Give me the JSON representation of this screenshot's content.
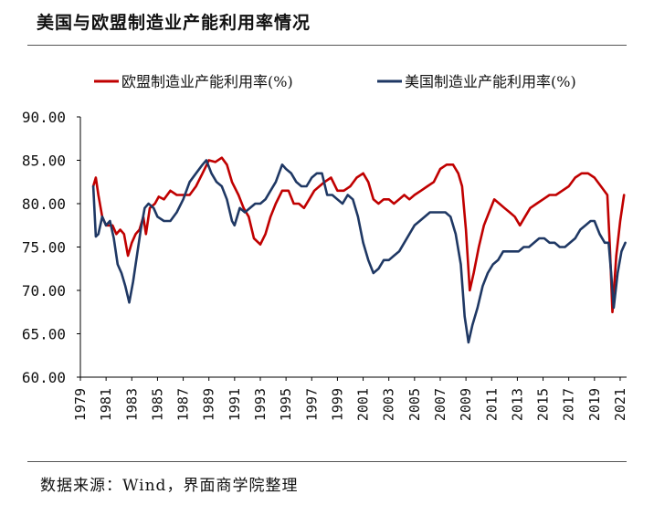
{
  "header": {
    "title": "美国与欧盟制造业产能利用率情况"
  },
  "footer": {
    "source": "数据来源：Wind，界面商学院整理"
  },
  "colors": {
    "eu": "#c00000",
    "us": "#1f3864",
    "axis": "#000000",
    "rule": "#555555"
  },
  "chart_data": {
    "type": "line",
    "title": "美国与欧盟制造业产能利用率情况",
    "xlabel": "",
    "ylabel": "",
    "ylim": [
      60,
      90
    ],
    "xlim": [
      1979,
      2021.5
    ],
    "y_ticks": [
      "60.00",
      "65.00",
      "70.00",
      "75.00",
      "80.00",
      "85.00",
      "90.00"
    ],
    "x_ticks": [
      "1979",
      "1981",
      "1983",
      "1985",
      "1987",
      "1989",
      "1991",
      "1993",
      "1995",
      "1997",
      "1999",
      "2001",
      "2003",
      "2005",
      "2007",
      "2009",
      "2011",
      "2013",
      "2015",
      "2017",
      "2019",
      "2021"
    ],
    "legend_position": "top",
    "series": [
      {
        "name": "欧盟制造业产能利用率(%)",
        "color": "#c00000",
        "points": [
          [
            1980.0,
            82.0
          ],
          [
            1980.2,
            83.0
          ],
          [
            1980.4,
            81.0
          ],
          [
            1980.7,
            78.5
          ],
          [
            1981.0,
            77.5
          ],
          [
            1981.5,
            77.5
          ],
          [
            1981.8,
            76.5
          ],
          [
            1982.1,
            77.0
          ],
          [
            1982.4,
            76.5
          ],
          [
            1982.7,
            74.0
          ],
          [
            1983.0,
            75.5
          ],
          [
            1983.3,
            76.5
          ],
          [
            1983.6,
            77.0
          ],
          [
            1983.9,
            78.5
          ],
          [
            1984.1,
            76.5
          ],
          [
            1984.4,
            79.5
          ],
          [
            1984.8,
            80.0
          ],
          [
            1985.1,
            80.8
          ],
          [
            1985.5,
            80.5
          ],
          [
            1986.0,
            81.5
          ],
          [
            1986.5,
            81.0
          ],
          [
            1987.0,
            81.0
          ],
          [
            1987.5,
            81.0
          ],
          [
            1988.0,
            82.0
          ],
          [
            1988.5,
            83.5
          ],
          [
            1989.0,
            85.0
          ],
          [
            1989.5,
            84.8
          ],
          [
            1990.0,
            85.3
          ],
          [
            1990.4,
            84.5
          ],
          [
            1990.8,
            82.5
          ],
          [
            1991.3,
            81.0
          ],
          [
            1991.7,
            79.5
          ],
          [
            1992.1,
            78.5
          ],
          [
            1992.5,
            76.0
          ],
          [
            1993.0,
            75.3
          ],
          [
            1993.4,
            76.5
          ],
          [
            1993.8,
            78.5
          ],
          [
            1994.2,
            80.0
          ],
          [
            1994.7,
            81.5
          ],
          [
            1995.2,
            81.5
          ],
          [
            1995.6,
            80.0
          ],
          [
            1996.0,
            80.0
          ],
          [
            1996.4,
            79.5
          ],
          [
            1996.8,
            80.5
          ],
          [
            1997.2,
            81.5
          ],
          [
            1997.6,
            82.0
          ],
          [
            1998.0,
            82.5
          ],
          [
            1998.5,
            83.0
          ],
          [
            1999.0,
            81.5
          ],
          [
            1999.5,
            81.5
          ],
          [
            2000.0,
            82.0
          ],
          [
            2000.5,
            83.0
          ],
          [
            2001.0,
            83.5
          ],
          [
            2001.4,
            82.5
          ],
          [
            2001.8,
            80.5
          ],
          [
            2002.2,
            80.0
          ],
          [
            2002.6,
            80.5
          ],
          [
            2003.0,
            80.5
          ],
          [
            2003.4,
            80.0
          ],
          [
            2003.8,
            80.5
          ],
          [
            2004.2,
            81.0
          ],
          [
            2004.6,
            80.5
          ],
          [
            2005.0,
            81.0
          ],
          [
            2005.5,
            81.5
          ],
          [
            2006.0,
            82.0
          ],
          [
            2006.5,
            82.5
          ],
          [
            2007.0,
            84.0
          ],
          [
            2007.5,
            84.5
          ],
          [
            2008.0,
            84.5
          ],
          [
            2008.4,
            83.5
          ],
          [
            2008.7,
            82.0
          ],
          [
            2009.0,
            77.0
          ],
          [
            2009.3,
            70.0
          ],
          [
            2009.6,
            72.0
          ],
          [
            2010.0,
            75.0
          ],
          [
            2010.4,
            77.5
          ],
          [
            2010.8,
            79.0
          ],
          [
            2011.2,
            80.5
          ],
          [
            2011.6,
            80.0
          ],
          [
            2012.0,
            79.5
          ],
          [
            2012.4,
            79.0
          ],
          [
            2012.8,
            78.5
          ],
          [
            2013.2,
            77.5
          ],
          [
            2013.6,
            78.5
          ],
          [
            2014.0,
            79.5
          ],
          [
            2014.5,
            80.0
          ],
          [
            2015.0,
            80.5
          ],
          [
            2015.5,
            81.0
          ],
          [
            2016.0,
            81.0
          ],
          [
            2016.5,
            81.5
          ],
          [
            2017.0,
            82.0
          ],
          [
            2017.5,
            83.0
          ],
          [
            2018.0,
            83.5
          ],
          [
            2018.5,
            83.5
          ],
          [
            2019.0,
            83.0
          ],
          [
            2019.5,
            82.0
          ],
          [
            2020.0,
            81.0
          ],
          [
            2020.2,
            75.0
          ],
          [
            2020.4,
            67.5
          ],
          [
            2020.7,
            74.0
          ],
          [
            2021.0,
            78.0
          ],
          [
            2021.3,
            81.0
          ]
        ]
      },
      {
        "name": "美国制造业产能利用率(%)",
        "color": "#1f3864",
        "points": [
          [
            1980.0,
            82.0
          ],
          [
            1980.2,
            76.2
          ],
          [
            1980.4,
            76.5
          ],
          [
            1980.7,
            78.5
          ],
          [
            1981.0,
            77.5
          ],
          [
            1981.3,
            78.0
          ],
          [
            1981.6,
            76.0
          ],
          [
            1981.9,
            73.0
          ],
          [
            1982.2,
            72.0
          ],
          [
            1982.5,
            70.5
          ],
          [
            1982.8,
            68.6
          ],
          [
            1983.1,
            71.0
          ],
          [
            1983.4,
            74.0
          ],
          [
            1983.7,
            77.0
          ],
          [
            1984.0,
            79.5
          ],
          [
            1984.3,
            80.0
          ],
          [
            1984.7,
            79.5
          ],
          [
            1985.0,
            78.5
          ],
          [
            1985.5,
            78.0
          ],
          [
            1986.0,
            78.0
          ],
          [
            1986.5,
            79.0
          ],
          [
            1987.0,
            80.5
          ],
          [
            1987.5,
            82.5
          ],
          [
            1988.0,
            83.5
          ],
          [
            1988.5,
            84.5
          ],
          [
            1988.8,
            85.0
          ],
          [
            1989.2,
            83.5
          ],
          [
            1989.6,
            82.5
          ],
          [
            1990.0,
            82.0
          ],
          [
            1990.4,
            80.5
          ],
          [
            1990.8,
            78.0
          ],
          [
            1991.0,
            77.5
          ],
          [
            1991.4,
            79.5
          ],
          [
            1991.8,
            79.0
          ],
          [
            1992.2,
            79.5
          ],
          [
            1992.6,
            80.0
          ],
          [
            1993.0,
            80.0
          ],
          [
            1993.4,
            80.5
          ],
          [
            1993.8,
            81.5
          ],
          [
            1994.2,
            82.5
          ],
          [
            1994.7,
            84.5
          ],
          [
            1995.0,
            84.0
          ],
          [
            1995.4,
            83.5
          ],
          [
            1995.8,
            82.5
          ],
          [
            1996.2,
            82.0
          ],
          [
            1996.6,
            82.0
          ],
          [
            1997.0,
            83.0
          ],
          [
            1997.4,
            83.5
          ],
          [
            1997.8,
            83.5
          ],
          [
            1998.2,
            81.0
          ],
          [
            1998.6,
            81.0
          ],
          [
            1999.0,
            80.5
          ],
          [
            1999.4,
            80.0
          ],
          [
            1999.8,
            81.0
          ],
          [
            2000.2,
            80.5
          ],
          [
            2000.6,
            78.5
          ],
          [
            2001.0,
            75.5
          ],
          [
            2001.4,
            73.5
          ],
          [
            2001.8,
            72.0
          ],
          [
            2002.2,
            72.5
          ],
          [
            2002.6,
            73.5
          ],
          [
            2003.0,
            73.5
          ],
          [
            2003.4,
            74.0
          ],
          [
            2003.8,
            74.5
          ],
          [
            2004.2,
            75.5
          ],
          [
            2004.6,
            76.5
          ],
          [
            2005.0,
            77.5
          ],
          [
            2005.4,
            78.0
          ],
          [
            2005.8,
            78.5
          ],
          [
            2006.2,
            79.0
          ],
          [
            2006.6,
            79.0
          ],
          [
            2007.0,
            79.0
          ],
          [
            2007.4,
            79.0
          ],
          [
            2007.8,
            78.5
          ],
          [
            2008.2,
            76.5
          ],
          [
            2008.6,
            73.0
          ],
          [
            2008.9,
            67.0
          ],
          [
            2009.2,
            64.0
          ],
          [
            2009.5,
            66.0
          ],
          [
            2009.9,
            68.0
          ],
          [
            2010.3,
            70.5
          ],
          [
            2010.7,
            72.0
          ],
          [
            2011.1,
            73.0
          ],
          [
            2011.5,
            73.5
          ],
          [
            2011.9,
            74.5
          ],
          [
            2012.3,
            74.5
          ],
          [
            2012.7,
            74.5
          ],
          [
            2013.1,
            74.5
          ],
          [
            2013.5,
            75.0
          ],
          [
            2013.9,
            75.0
          ],
          [
            2014.3,
            75.5
          ],
          [
            2014.7,
            76.0
          ],
          [
            2015.1,
            76.0
          ],
          [
            2015.5,
            75.5
          ],
          [
            2015.9,
            75.5
          ],
          [
            2016.3,
            75.0
          ],
          [
            2016.7,
            75.0
          ],
          [
            2017.1,
            75.5
          ],
          [
            2017.5,
            76.0
          ],
          [
            2017.9,
            77.0
          ],
          [
            2018.3,
            77.5
          ],
          [
            2018.7,
            78.0
          ],
          [
            2019.0,
            78.0
          ],
          [
            2019.4,
            76.5
          ],
          [
            2019.8,
            75.5
          ],
          [
            2020.1,
            75.5
          ],
          [
            2020.3,
            72.0
          ],
          [
            2020.5,
            68.0
          ],
          [
            2020.8,
            72.0
          ],
          [
            2021.1,
            74.5
          ],
          [
            2021.4,
            75.5
          ]
        ]
      }
    ]
  }
}
